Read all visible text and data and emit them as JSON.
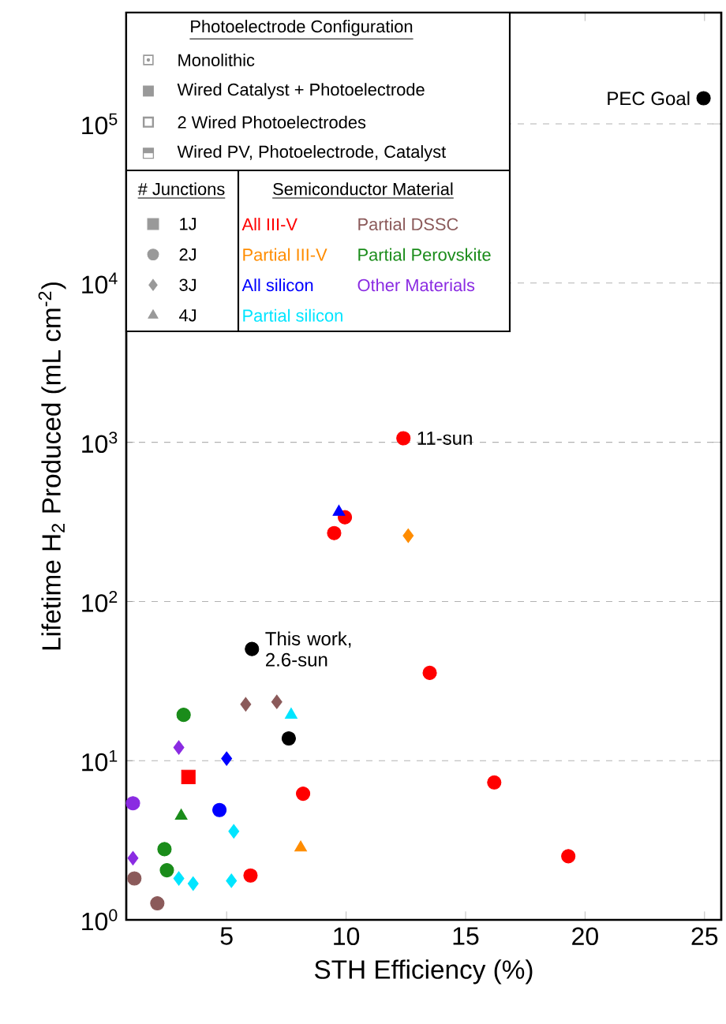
{
  "chart_data": {
    "type": "scatter",
    "xlabel": "STH Efficiency (%)",
    "ylabel": "Lifetime H$_{2}$ Produced (mL cm$^{-2}$)",
    "xlim": [
      0.8,
      25.7
    ],
    "ylim": [
      1,
      500000
    ],
    "xticks": [
      5,
      10,
      15,
      20,
      25
    ],
    "yticks": [
      {
        "value": 1,
        "label": "10$^{0}$"
      },
      {
        "value": 10,
        "label": "10$^{1}$"
      },
      {
        "value": 100,
        "label": "10$^{2}$"
      },
      {
        "value": 1000,
        "label": "10$^{3}$"
      },
      {
        "value": 10000,
        "label": "10$^{4}$"
      },
      {
        "value": 100000,
        "label": "10$^{5}$"
      }
    ],
    "log": "y",
    "grid": "y",
    "legend": "top left",
    "legend_title": "Semiconductor Material",
    "series": [
      {
        "name": "All III-V",
        "color": "#ff0000",
        "marker": "circle",
        "x": [
          12.4,
          9.5,
          9.95,
          13.5,
          16.2,
          8.2,
          19.3,
          6.0
        ],
        "values": [
          1060,
          269,
          338,
          35.6,
          7.3,
          6.2,
          2.51,
          1.9
        ]
      },
      {
        "name": "Partial III-V",
        "color": "#ff8c00",
        "marker": "diamond",
        "x": [
          12.6
        ],
        "values": [
          259
        ]
      },
      {
        "name": "All silicon",
        "color": "#0000ff",
        "marker": "diamond",
        "x": [
          5.0
        ],
        "values": [
          10.3
        ]
      },
      {
        "name": "Partial silicon",
        "color": "#00e5ff",
        "marker": "diamond",
        "x": [
          5.3,
          3.0,
          3.6,
          5.2
        ],
        "values": [
          3.6,
          1.82,
          1.69,
          1.76
        ]
      },
      {
        "name": "Partial DSSC",
        "color": "#8b5a5a",
        "marker": "diamond",
        "x": [
          5.8,
          7.1
        ],
        "values": [
          22.6,
          23.4
        ]
      },
      {
        "name": "Partial Perovskite",
        "color": "#1a8c1a",
        "marker": "circle",
        "x": [
          3.2,
          2.4,
          2.5
        ],
        "values": [
          19.4,
          2.78,
          2.05
        ]
      },
      {
        "name": "Other Materials",
        "color": "#8a2be2",
        "marker": "diamond",
        "x": [
          3.0,
          1.08
        ],
        "values": [
          12.1,
          2.44
        ]
      },
      {
        "color": "#ff0000",
        "marker": "square",
        "x": [
          3.4
        ],
        "values": [
          7.9
        ]
      },
      {
        "color": "#ff8c00",
        "marker": "triangle",
        "x": [
          8.1
        ],
        "values": [
          2.84
        ]
      },
      {
        "color": "#0000ff",
        "marker": "circle",
        "x": [
          4.7
        ],
        "values": [
          4.9
        ]
      },
      {
        "color": "#0000ff",
        "marker": "triangle",
        "x": [
          9.7
        ],
        "values": [
          365
        ]
      },
      {
        "color": "#00e5ff",
        "marker": "triangle",
        "x": [
          7.7
        ],
        "values": [
          19.4
        ]
      },
      {
        "color": "#8b5a5a",
        "marker": "circle",
        "x": [
          1.14,
          2.1
        ],
        "values": [
          1.82,
          1.27
        ]
      },
      {
        "color": "#1a8c1a",
        "marker": "triangle",
        "x": [
          3.1
        ],
        "values": [
          4.5
        ]
      },
      {
        "color": "#8a2be2",
        "marker": "circle",
        "x": [
          1.08
        ],
        "values": [
          5.4
        ]
      },
      {
        "color": "#000000",
        "marker": "circle",
        "x": [
          6.06,
          7.6
        ],
        "values": [
          50.3,
          13.8
        ]
      },
      {
        "color": "#000000",
        "marker": "circle",
        "x": [
          24.96
        ],
        "values": [
          145000
        ]
      }
    ],
    "annotations": [
      "Photoelectrode Configuration",
      "Monolithic",
      "Wired Catalyst + Photoelectrode",
      "2 Wired Photoelectrodes",
      "Wired PV, Photoelectrode, Catalyst",
      "# Junctions",
      "1J",
      "2J",
      "3J",
      "4J",
      {
        "text": "PEC Goal",
        "x": 24.96,
        "y": 145000
      },
      {
        "text": "11-sun",
        "x": 12.4,
        "y": 1060
      },
      {
        "text": "This work, 2.6-sun",
        "x": 6.06,
        "y": 50.3
      }
    ]
  }
}
